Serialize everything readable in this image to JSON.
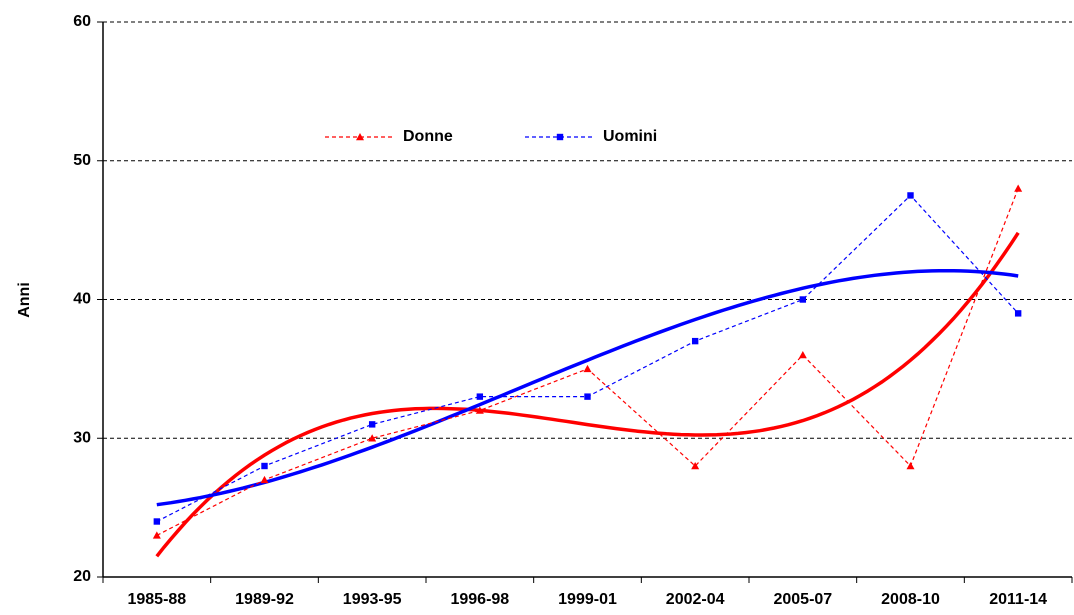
{
  "chart_data": {
    "type": "line",
    "y_label": "Anni",
    "categories": [
      "1985-88",
      "1989-92",
      "1993-95",
      "1996-98",
      "1999-01",
      "2002-04",
      "2005-07",
      "2008-10",
      "2011-14"
    ],
    "series": [
      {
        "name": "Donne",
        "color": "#ff0000",
        "marker": "triangle",
        "trendline": "polynomial-3",
        "values": [
          23,
          27,
          30,
          32,
          35,
          28,
          36,
          28,
          48
        ]
      },
      {
        "name": "Uomini",
        "color": "#0000ff",
        "marker": "square",
        "trendline": "polynomial-3",
        "values": [
          24,
          28,
          31,
          33,
          33,
          37,
          40,
          47.5,
          39
        ]
      }
    ],
    "ylim": [
      20,
      60
    ],
    "yticks": [
      20,
      30,
      40,
      50,
      60
    ],
    "grid": true
  }
}
